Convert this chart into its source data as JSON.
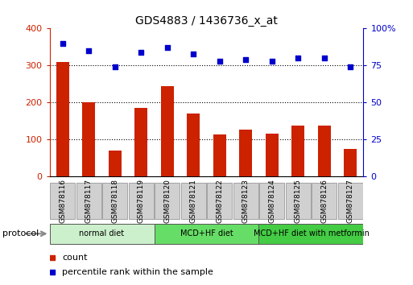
{
  "title": "GDS4883 / 1436736_x_at",
  "samples": [
    "GSM878116",
    "GSM878117",
    "GSM878118",
    "GSM878119",
    "GSM878120",
    "GSM878121",
    "GSM878122",
    "GSM878123",
    "GSM878124",
    "GSM878125",
    "GSM878126",
    "GSM878127"
  ],
  "counts": [
    310,
    200,
    70,
    185,
    245,
    170,
    115,
    127,
    117,
    137,
    137,
    75
  ],
  "percentile_ranks": [
    90,
    85,
    74,
    84,
    87,
    83,
    78,
    79,
    78,
    80,
    80,
    74
  ],
  "groups": [
    {
      "label": "normal diet",
      "start": 0,
      "end": 4,
      "color": "#ccf0cc"
    },
    {
      "label": "MCD+HF diet",
      "start": 4,
      "end": 8,
      "color": "#66dd66"
    },
    {
      "label": "MCD+HF diet with metformin",
      "start": 8,
      "end": 12,
      "color": "#44cc44"
    }
  ],
  "bar_color": "#cc2200",
  "dot_color": "#0000cc",
  "left_ylim": [
    0,
    400
  ],
  "right_ylim": [
    0,
    100
  ],
  "left_yticks": [
    0,
    100,
    200,
    300,
    400
  ],
  "right_yticks": [
    0,
    25,
    50,
    75,
    100
  ],
  "right_yticklabels": [
    "0",
    "25",
    "50",
    "75",
    "100%"
  ],
  "background_color": "#ffffff",
  "plot_bg_color": "#ffffff",
  "tick_label_bg": "#d0d0d0",
  "legend_count_label": "count",
  "legend_pct_label": "percentile rank within the sample",
  "protocol_label": "protocol"
}
